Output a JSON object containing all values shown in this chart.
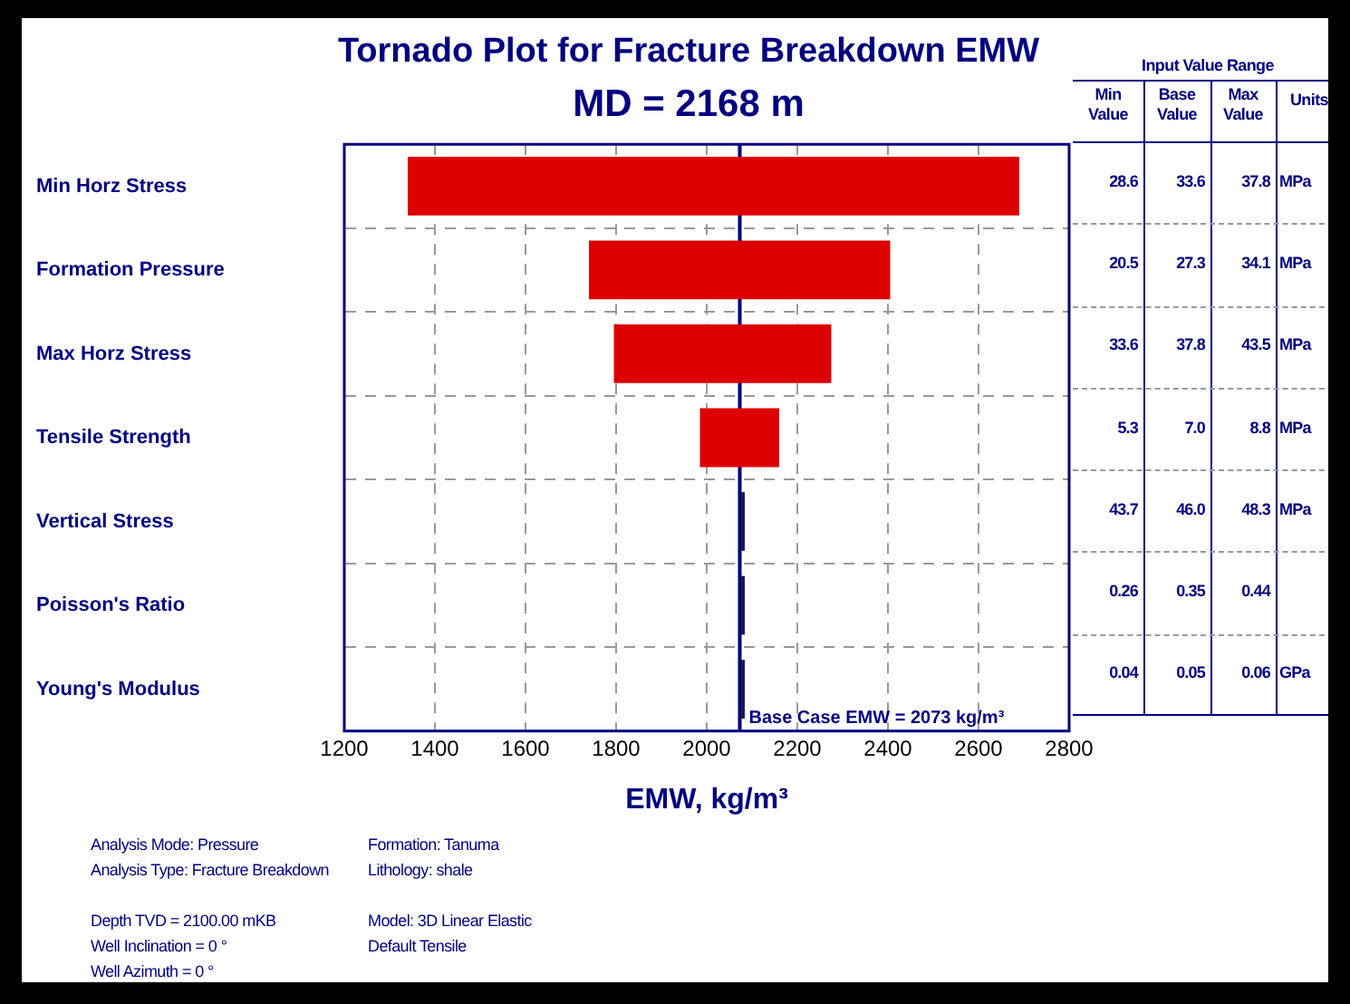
{
  "chart_data": {
    "type": "bar",
    "orientation": "horizontal",
    "title": "Tornado Plot for Fracture Breakdown EMW",
    "subtitle": "MD = 2168 m",
    "xlabel": "EMW, kg/m³",
    "categories": [
      "Min Horz Stress",
      "Formation Pressure",
      "Max Horz Stress",
      "Tensile Strength",
      "Vertical Stress",
      "Poisson's Ratio",
      "Young's Modulus"
    ],
    "base": [
      1340,
      1740,
      1795,
      1985,
      2076,
      2076,
      2076
    ],
    "values": [
      1350,
      665,
      480,
      175,
      8,
      8,
      8
    ],
    "colors": [
      "#dd0000",
      "#dd0000",
      "#dd0000",
      "#dd0000",
      "#1a1a50",
      "#1a1a50",
      "#1a1a50"
    ],
    "xlim": [
      1200,
      2800
    ],
    "xticks": [
      1200,
      1400,
      1600,
      1800,
      2000,
      2200,
      2400,
      2600,
      2800
    ],
    "grid": true,
    "ref_lines": [
      {
        "axis": "x",
        "value": 2073,
        "label": "Base Case EMW = 2073 kg/m³",
        "color": "#000080"
      }
    ],
    "annotations": [
      "Input Value Range",
      "Min Value",
      "Base Value",
      "Max Value",
      "Units",
      "28.6",
      "33.6",
      "37.8",
      "MPa",
      "20.5",
      "27.3",
      "34.1",
      "MPa",
      "33.6",
      "37.8",
      "43.5",
      "MPa",
      "5.3",
      "7.0",
      "8.8",
      "MPa",
      "43.7",
      "46.0",
      "48.3",
      "MPa",
      "0.26",
      "0.35",
      "0.44",
      null,
      "0.04",
      "0.05",
      "0.06",
      "GPa",
      "Analysis Mode: Pressure",
      "Analysis Type: Fracture Breakdown",
      "Depth TVD = 2100.00 mKB",
      "Well Inclination = 0 °",
      "Well Azimuth = 0 °",
      "Formation: Tanuma",
      "Lithology: shale",
      "Model: 3D Linear Elastic",
      "Default Tensile"
    ]
  }
}
